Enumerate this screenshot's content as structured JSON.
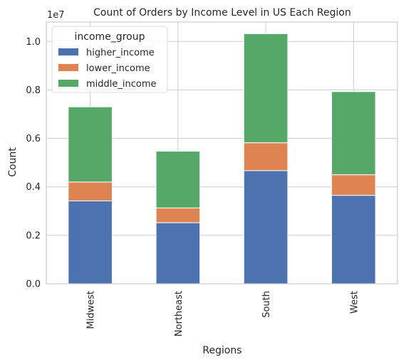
{
  "chart_data": {
    "type": "bar",
    "stacked": true,
    "title": "Count of Orders by Income Level in US Each Region",
    "xlabel": "Regions",
    "ylabel": "Count",
    "y_offset_label": "1e7",
    "ylim": [
      0,
      1.08
    ],
    "y_ticks": [
      "0.0",
      "0.2",
      "0.4",
      "0.6",
      "0.8",
      "1.0"
    ],
    "grid": true,
    "legend": {
      "title": "income_group",
      "placement": "top-left"
    },
    "categories": [
      "Midwest",
      "Northeast",
      "South",
      "West"
    ],
    "series": [
      {
        "name": "higher_income",
        "color": "#4c72b0",
        "values": [
          0.342,
          0.252,
          0.467,
          0.365
        ]
      },
      {
        "name": "lower_income",
        "color": "#dd8452",
        "values": [
          0.078,
          0.061,
          0.115,
          0.085
        ]
      },
      {
        "name": "middle_income",
        "color": "#55a868",
        "values": [
          0.31,
          0.234,
          0.45,
          0.343
        ]
      }
    ]
  }
}
